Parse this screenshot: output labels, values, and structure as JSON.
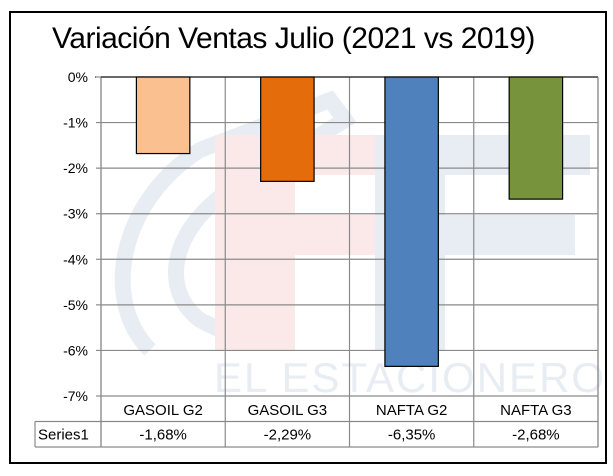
{
  "chart_data": {
    "type": "bar",
    "title": "Variación Ventas Julio (2021 vs 2019)",
    "xlabel": "",
    "ylabel": "",
    "categories": [
      "GASOIL G2",
      "GASOIL G3",
      "NAFTA G2",
      "NAFTA G3"
    ],
    "series": [
      {
        "name": "Series1",
        "values": [
          -1.68,
          -2.29,
          -6.35,
          -2.68
        ],
        "value_labels": [
          "-1,68%",
          "-2,29%",
          "-6,35%",
          "-2,68%"
        ],
        "colors": [
          "#FAC090",
          "#E46C0A",
          "#4F81BD",
          "#77933C"
        ]
      }
    ],
    "ylim": [
      -7,
      0
    ],
    "yticks": [
      0,
      -1,
      -2,
      -3,
      -4,
      -5,
      -6,
      -7
    ],
    "ytick_labels": [
      "0%",
      "-1%",
      "-2%",
      "-3%",
      "-4%",
      "-5%",
      "-6%",
      "-7%"
    ],
    "grid": true,
    "legend": "data-table-below",
    "data_table": {
      "row_label": "Series1",
      "headers": [
        "GASOIL G2",
        "GASOIL G3",
        "NAFTA G2",
        "NAFTA G3"
      ],
      "values": [
        "-1,68%",
        "-2,29%",
        "-6,35%",
        "-2,68%"
      ]
    },
    "watermark": "EL ESTACIONERO"
  }
}
